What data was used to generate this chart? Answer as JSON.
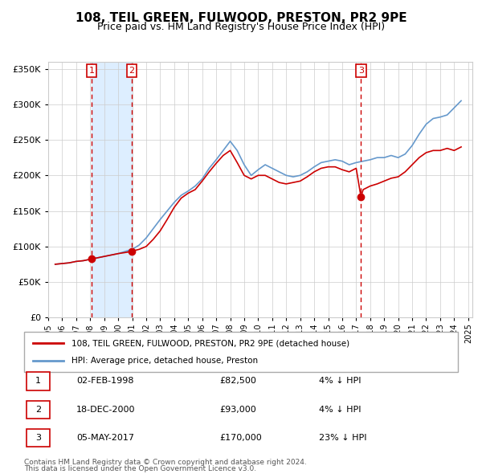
{
  "title": "108, TEIL GREEN, FULWOOD, PRESTON, PR2 9PE",
  "subtitle": "Price paid vs. HM Land Registry's House Price Index (HPI)",
  "legend_line1": "108, TEIL GREEN, FULWOOD, PRESTON, PR2 9PE (detached house)",
  "legend_line2": "HPI: Average price, detached house, Preston",
  "footer_line1": "Contains HM Land Registry data © Crown copyright and database right 2024.",
  "footer_line2": "This data is licensed under the Open Government Licence v3.0.",
  "sale_color": "#cc0000",
  "hpi_color": "#6699cc",
  "sale_dot_color": "#cc0000",
  "shaded_region_color": "#ddeeff",
  "vline_color": "#cc0000",
  "purchases": [
    {
      "label": "1",
      "date_str": "02-FEB-1998",
      "price": 82500,
      "pct": "4%",
      "x": 1998.09
    },
    {
      "label": "2",
      "date_str": "18-DEC-2000",
      "price": 93000,
      "pct": "4%",
      "x": 2000.96
    },
    {
      "label": "3",
      "date_str": "05-MAY-2017",
      "price": 170000,
      "pct": "23%",
      "x": 2017.34
    }
  ],
  "ylim": [
    0,
    360000
  ],
  "yticks": [
    0,
    50000,
    100000,
    150000,
    200000,
    250000,
    300000,
    350000
  ],
  "xlim_start": 1995.0,
  "xlim_end": 2025.3,
  "shaded_x_start": 1998.09,
  "shaded_x_end": 2000.96,
  "hpi_data": {
    "years": [
      1995.5,
      1996.0,
      1996.5,
      1997.0,
      1997.5,
      1998.0,
      1998.5,
      1999.0,
      1999.5,
      2000.0,
      2000.5,
      2001.0,
      2001.5,
      2002.0,
      2002.5,
      2003.0,
      2003.5,
      2004.0,
      2004.5,
      2005.0,
      2005.5,
      2006.0,
      2006.5,
      2007.0,
      2007.5,
      2008.0,
      2008.5,
      2009.0,
      2009.5,
      2010.0,
      2010.5,
      2011.0,
      2011.5,
      2012.0,
      2012.5,
      2013.0,
      2013.5,
      2014.0,
      2014.5,
      2015.0,
      2015.5,
      2016.0,
      2016.5,
      2017.0,
      2017.5,
      2018.0,
      2018.5,
      2019.0,
      2019.5,
      2020.0,
      2020.5,
      2021.0,
      2021.5,
      2022.0,
      2022.5,
      2023.0,
      2023.5,
      2024.0,
      2024.5
    ],
    "values": [
      75000,
      76000,
      77000,
      79000,
      80000,
      82000,
      84000,
      86000,
      88000,
      90000,
      93000,
      96000,
      102000,
      112000,
      125000,
      138000,
      150000,
      162000,
      172000,
      178000,
      185000,
      195000,
      210000,
      222000,
      235000,
      248000,
      235000,
      215000,
      200000,
      208000,
      215000,
      210000,
      205000,
      200000,
      198000,
      200000,
      205000,
      212000,
      218000,
      220000,
      222000,
      220000,
      215000,
      218000,
      220000,
      222000,
      225000,
      225000,
      228000,
      225000,
      230000,
      242000,
      258000,
      272000,
      280000,
      282000,
      285000,
      295000,
      305000
    ]
  },
  "sale_line_data": {
    "years": [
      1995.5,
      1996.0,
      1996.5,
      1997.0,
      1997.5,
      1998.0,
      1998.09,
      1998.5,
      1999.0,
      1999.5,
      2000.0,
      2000.5,
      2000.96,
      2001.0,
      2001.5,
      2002.0,
      2002.5,
      2003.0,
      2003.5,
      2004.0,
      2004.5,
      2005.0,
      2005.5,
      2006.0,
      2006.5,
      2007.0,
      2007.5,
      2008.0,
      2008.5,
      2009.0,
      2009.5,
      2010.0,
      2010.5,
      2011.0,
      2011.5,
      2012.0,
      2012.5,
      2013.0,
      2013.5,
      2014.0,
      2014.5,
      2015.0,
      2015.5,
      2016.0,
      2016.5,
      2017.0,
      2017.34,
      2017.5,
      2018.0,
      2018.5,
      2019.0,
      2019.5,
      2020.0,
      2020.5,
      2021.0,
      2021.5,
      2022.0,
      2022.5,
      2023.0,
      2023.5,
      2024.0,
      2024.5
    ],
    "values": [
      75000,
      76000,
      77000,
      79000,
      80000,
      82000,
      82500,
      84000,
      86000,
      88000,
      90000,
      91500,
      93000,
      93500,
      96000,
      100000,
      110000,
      122000,
      138000,
      155000,
      168000,
      175000,
      180000,
      192000,
      205000,
      217000,
      228000,
      235000,
      218000,
      200000,
      195000,
      200000,
      200000,
      195000,
      190000,
      188000,
      190000,
      192000,
      198000,
      205000,
      210000,
      212000,
      212000,
      208000,
      205000,
      210000,
      170000,
      180000,
      185000,
      188000,
      192000,
      196000,
      198000,
      205000,
      215000,
      225000,
      232000,
      235000,
      235000,
      238000,
      235000,
      240000
    ]
  }
}
